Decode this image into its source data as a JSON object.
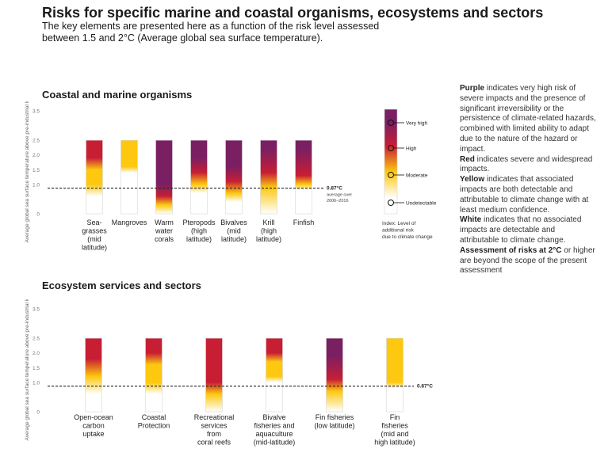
{
  "title": "Risks for specific marine and coastal organisms, ecosystems and sectors",
  "subtitle": "The key elements are presented here as a function of the risk level assessed between 1.5 and 2°C (Average global sea surface temperature).",
  "colors": {
    "white": "#ffffff",
    "yellow": "#fdc80f",
    "red": "#c81e34",
    "purple": "#7b1f63",
    "dashed": "#222222"
  },
  "legend": {
    "levels": [
      "Very high",
      "High",
      "Moderate",
      "Undetectable"
    ],
    "index_label_lines": [
      "Index: Level of",
      "additional risk",
      "due to climate change"
    ],
    "text": {
      "purple_bold": "Purple",
      "purple_rest": " indicates very high risk of severe impacts and the presence of significant irreversibility or the persistence of climate-related hazards, combined with limited ability to adapt due to the nature of the hazard or impact.",
      "red_bold": "Red",
      "red_rest": " indicates severe and widespread impacts.",
      "yellow_bold": "Yellow",
      "yellow_rest": " indicates that associated impacts are both detectable and attributable to climate change with at least medium confidence.",
      "white_bold": "White",
      "white_rest": " indicates that no associated impacts are detectable and attributable to climate change.",
      "assess_bold": "Assessment of risks at 2°C",
      "assess_rest": " or higher are beyond the scope of the present assessment"
    }
  },
  "chart_data": [
    {
      "type": "bar",
      "panel_title": "Coastal and marine organisms",
      "ylabel": "Average global sea surface temperature above pre-industrial level (°C)",
      "ylim": [
        0,
        3.5
      ],
      "yticks": [
        "0",
        "1.0",
        "1.5",
        "2.0",
        "2.5",
        "3.5"
      ],
      "reference_line": {
        "value": 0.87,
        "label": "0.87°C",
        "sublabel_lines": [
          "average over",
          "2006–2016"
        ]
      },
      "categories": [
        [
          "Sea-",
          "grasses",
          "(mid",
          "latitude)"
        ],
        [
          "Mangroves"
        ],
        [
          "Warm",
          "water",
          "corals"
        ],
        [
          "Pteropods",
          "(high",
          "latitude)"
        ],
        [
          "Bivalves",
          "(mid",
          "latitude)"
        ],
        [
          "Krill",
          "(high",
          "latitude)"
        ],
        [
          "Finfish"
        ]
      ],
      "risk_transitions": [
        [
          [
            0.0,
            "white"
          ],
          [
            0.6,
            "white"
          ],
          [
            1.0,
            "yellow"
          ],
          [
            1.5,
            "yellow"
          ],
          [
            1.9,
            "red"
          ],
          [
            2.5,
            "red"
          ]
        ],
        [
          [
            0.0,
            "white"
          ],
          [
            1.4,
            "white"
          ],
          [
            1.6,
            "yellow"
          ],
          [
            2.5,
            "yellow"
          ]
        ],
        [
          [
            0.0,
            "white"
          ],
          [
            0.3,
            "yellow"
          ],
          [
            0.6,
            "red"
          ],
          [
            1.0,
            "purple"
          ],
          [
            2.5,
            "purple"
          ]
        ],
        [
          [
            0.0,
            "white"
          ],
          [
            0.7,
            "white"
          ],
          [
            1.0,
            "yellow"
          ],
          [
            1.4,
            "red"
          ],
          [
            1.9,
            "purple"
          ],
          [
            2.5,
            "purple"
          ]
        ],
        [
          [
            0.0,
            "white"
          ],
          [
            0.4,
            "white"
          ],
          [
            0.7,
            "yellow"
          ],
          [
            1.1,
            "red"
          ],
          [
            1.6,
            "purple"
          ],
          [
            2.5,
            "purple"
          ]
        ],
        [
          [
            0.0,
            "white"
          ],
          [
            0.9,
            "yellow"
          ],
          [
            1.4,
            "red"
          ],
          [
            2.2,
            "purple"
          ],
          [
            2.5,
            "purple"
          ]
        ],
        [
          [
            0.0,
            "white"
          ],
          [
            0.8,
            "white"
          ],
          [
            1.0,
            "yellow"
          ],
          [
            1.3,
            "red"
          ],
          [
            2.2,
            "purple"
          ],
          [
            2.5,
            "purple"
          ]
        ]
      ]
    },
    {
      "type": "bar",
      "panel_title": "Ecosystem services and sectors",
      "ylabel": "Average global sea surface temperature above pre-industrial level (°C)",
      "ylim": [
        0,
        3.5
      ],
      "yticks": [
        "0",
        "1.0",
        "1.5",
        "2.0",
        "2.5",
        "3.5"
      ],
      "reference_line": {
        "value": 0.87,
        "label": "0.87°C"
      },
      "categories": [
        [
          "Open-ocean",
          "carbon",
          "uptake"
        ],
        [
          "Coastal",
          "Protection"
        ],
        [
          "Recreational",
          "services",
          "from",
          "coral reefs"
        ],
        [
          "Bivalve",
          "fisheries and",
          "aquaculture",
          "(mid-latitude)"
        ],
        [
          "Fin fisheries",
          "(low latitude)"
        ],
        [
          "Fin",
          "fisheries",
          "(mid and",
          "high latitude)"
        ]
      ],
      "risk_transitions": [
        [
          [
            0.0,
            "white"
          ],
          [
            0.6,
            "white"
          ],
          [
            1.2,
            "yellow"
          ],
          [
            1.8,
            "red"
          ],
          [
            2.5,
            "red"
          ]
        ],
        [
          [
            0.0,
            "white"
          ],
          [
            0.6,
            "white"
          ],
          [
            1.0,
            "yellow"
          ],
          [
            1.6,
            "yellow"
          ],
          [
            2.0,
            "red"
          ],
          [
            2.5,
            "red"
          ]
        ],
        [
          [
            0.0,
            "white"
          ],
          [
            0.6,
            "yellow"
          ],
          [
            1.0,
            "red"
          ],
          [
            2.5,
            "red"
          ]
        ],
        [
          [
            0.0,
            "white"
          ],
          [
            1.0,
            "white"
          ],
          [
            1.2,
            "yellow"
          ],
          [
            1.7,
            "yellow"
          ],
          [
            2.0,
            "red"
          ],
          [
            2.5,
            "red"
          ]
        ],
        [
          [
            0.0,
            "white"
          ],
          [
            0.7,
            "yellow"
          ],
          [
            1.1,
            "red"
          ],
          [
            1.9,
            "purple"
          ],
          [
            2.5,
            "purple"
          ]
        ],
        [
          [
            0.0,
            "white"
          ],
          [
            0.8,
            "white"
          ],
          [
            1.0,
            "yellow"
          ],
          [
            2.5,
            "yellow"
          ]
        ]
      ]
    }
  ]
}
